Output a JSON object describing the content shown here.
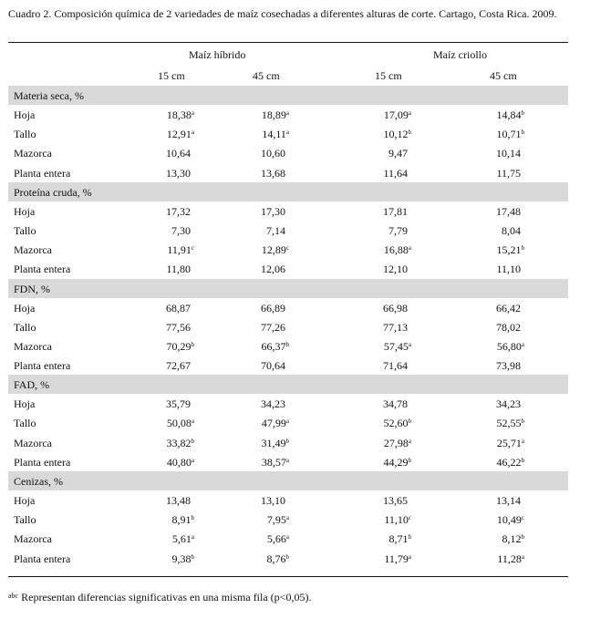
{
  "caption": "Cuadro 2.  Composición química de 2 variedades de maíz cosechadas a diferentes alturas de corte. Cartago, Costa Rica. 2009.",
  "header": {
    "group_a": "Maíz híbrido",
    "group_b": "Maíz criollo",
    "sub": [
      "15 cm",
      "45 cm",
      "15 cm",
      "45 cm"
    ]
  },
  "sections": [
    {
      "title": "Materia seca, %",
      "rows": [
        {
          "label": "Hoja",
          "cells": [
            {
              "v": "18,38",
              "s": "a"
            },
            {
              "v": "18,89",
              "s": "a"
            },
            {
              "v": "17,09",
              "s": "a"
            },
            {
              "v": "14,84",
              "s": "b"
            }
          ]
        },
        {
          "label": "Tallo",
          "cells": [
            {
              "v": "12,91",
              "s": "a"
            },
            {
              "v": "14,11",
              "s": "a"
            },
            {
              "v": "10,12",
              "s": "b"
            },
            {
              "v": "10,71",
              "s": "b"
            }
          ]
        },
        {
          "label": "Mazorca",
          "cells": [
            {
              "v": "10,64",
              "s": ""
            },
            {
              "v": "10,60",
              "s": ""
            },
            {
              "v": "9,47",
              "s": ""
            },
            {
              "v": "10,14",
              "s": ""
            }
          ]
        },
        {
          "label": "Planta entera",
          "cells": [
            {
              "v": "13,30",
              "s": ""
            },
            {
              "v": "13,68",
              "s": ""
            },
            {
              "v": "11,64",
              "s": ""
            },
            {
              "v": "11,75",
              "s": ""
            }
          ]
        }
      ]
    },
    {
      "title": "Proteína cruda, %",
      "rows": [
        {
          "label": "Hoja",
          "cells": [
            {
              "v": "17,32",
              "s": ""
            },
            {
              "v": "17,30",
              "s": ""
            },
            {
              "v": "17,81",
              "s": ""
            },
            {
              "v": "17,48",
              "s": ""
            }
          ]
        },
        {
          "label": "Tallo",
          "cells": [
            {
              "v": "7,30",
              "s": ""
            },
            {
              "v": "7,14",
              "s": ""
            },
            {
              "v": "7,79",
              "s": ""
            },
            {
              "v": "8,04",
              "s": ""
            }
          ]
        },
        {
          "label": "Mazorca",
          "cells": [
            {
              "v": "11,91",
              "s": "c"
            },
            {
              "v": "12,89",
              "s": "c"
            },
            {
              "v": "16,88",
              "s": "a"
            },
            {
              "v": "15,21",
              "s": "b"
            }
          ]
        },
        {
          "label": "Planta entera",
          "cells": [
            {
              "v": "11,80",
              "s": ""
            },
            {
              "v": "12,06",
              "s": ""
            },
            {
              "v": "12,10",
              "s": ""
            },
            {
              "v": "11,10",
              "s": ""
            }
          ]
        }
      ]
    },
    {
      "title": "FDN, %",
      "rows": [
        {
          "label": "Hoja",
          "cells": [
            {
              "v": "68,87",
              "s": ""
            },
            {
              "v": "66,89",
              "s": ""
            },
            {
              "v": "66,98",
              "s": ""
            },
            {
              "v": "66,42",
              "s": ""
            }
          ]
        },
        {
          "label": "Tallo",
          "cells": [
            {
              "v": "77,56",
              "s": ""
            },
            {
              "v": "77,26",
              "s": ""
            },
            {
              "v": "77,13",
              "s": ""
            },
            {
              "v": "78,02",
              "s": ""
            }
          ]
        },
        {
          "label": "Mazorca",
          "cells": [
            {
              "v": "70,29",
              "s": "b"
            },
            {
              "v": "66,37",
              "s": "b"
            },
            {
              "v": "57,45",
              "s": "a"
            },
            {
              "v": "56,80",
              "s": "a"
            }
          ]
        },
        {
          "label": "Planta entera",
          "cells": [
            {
              "v": "72,67",
              "s": ""
            },
            {
              "v": "70,64",
              "s": ""
            },
            {
              "v": "71,64",
              "s": ""
            },
            {
              "v": "73,98",
              "s": ""
            }
          ]
        }
      ]
    },
    {
      "title": "FAD, %",
      "rows": [
        {
          "label": "Hoja",
          "cells": [
            {
              "v": "35,79",
              "s": ""
            },
            {
              "v": "34,23",
              "s": ""
            },
            {
              "v": "34,78",
              "s": ""
            },
            {
              "v": "34,23",
              "s": ""
            }
          ]
        },
        {
          "label": "Tallo",
          "cells": [
            {
              "v": "50,08",
              "s": "a"
            },
            {
              "v": "47,99",
              "s": "a"
            },
            {
              "v": "52,60",
              "s": "b"
            },
            {
              "v": "52,55",
              "s": "b"
            }
          ]
        },
        {
          "label": "Mazorca",
          "cells": [
            {
              "v": "33,82",
              "s": "b"
            },
            {
              "v": "31,49",
              "s": "b"
            },
            {
              "v": "27,98",
              "s": "a"
            },
            {
              "v": "25,71",
              "s": "a"
            }
          ]
        },
        {
          "label": "Planta entera",
          "cells": [
            {
              "v": "40,80",
              "s": "a"
            },
            {
              "v": "38,57",
              "s": "a"
            },
            {
              "v": "44,29",
              "s": "b"
            },
            {
              "v": "46,22",
              "s": "b"
            }
          ]
        }
      ]
    },
    {
      "title": "Cenizas, %",
      "rows": [
        {
          "label": "Hoja",
          "cells": [
            {
              "v": "13,48",
              "s": ""
            },
            {
              "v": "13,10",
              "s": ""
            },
            {
              "v": "13,65",
              "s": ""
            },
            {
              "v": "13,14",
              "s": ""
            }
          ]
        },
        {
          "label": "Tallo",
          "cells": [
            {
              "v": "8,91",
              "s": "b"
            },
            {
              "v": "7,95",
              "s": "a"
            },
            {
              "v": "11,10",
              "s": "c"
            },
            {
              "v": "10,49",
              "s": "c"
            }
          ]
        },
        {
          "label": "Mazorca",
          "cells": [
            {
              "v": "5,61",
              "s": "a"
            },
            {
              "v": "5,66",
              "s": "a"
            },
            {
              "v": "8,71",
              "s": "b"
            },
            {
              "v": "8,12",
              "s": "b"
            }
          ]
        },
        {
          "label": "Planta entera",
          "cells": [
            {
              "v": "9,38",
              "s": "b"
            },
            {
              "v": "8,76",
              "s": "b"
            },
            {
              "v": "11,79",
              "s": "a"
            },
            {
              "v": "11,28",
              "s": "a"
            }
          ]
        }
      ]
    }
  ],
  "footnote": {
    "sup": "abc",
    "text": " Representan diferencias significativas en una misma fila (p<0,05)."
  }
}
